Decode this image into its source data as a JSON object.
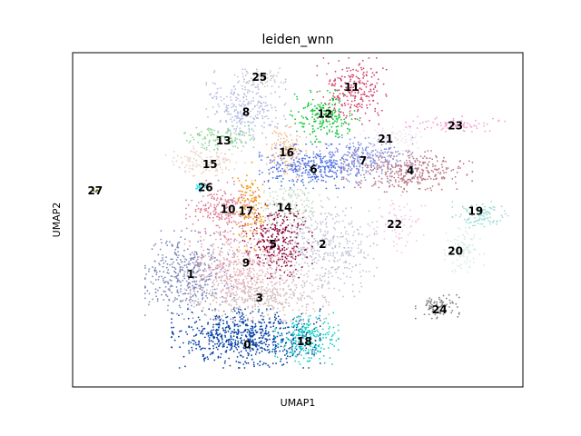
{
  "chart_data": {
    "type": "scatter",
    "title": "leiden_wnn",
    "xlabel": "UMAP1",
    "ylabel": "UMAP2",
    "xlim": [
      0,
      100
    ],
    "ylim": [
      0,
      100
    ],
    "grid": false,
    "ticks": false,
    "clusters": [
      {
        "label": "0",
        "color": "#023fa5",
        "x": 38.5,
        "y": 14.5,
        "sx": 7.5,
        "sy": 4.0,
        "n": 700
      },
      {
        "label": "1",
        "color": "#7d87b9",
        "x": 26.0,
        "y": 33.5,
        "sx": 4.5,
        "sy": 6.0,
        "n": 450
      },
      {
        "label": "2",
        "color": "#bec1d4",
        "x": 55.5,
        "y": 42.0,
        "sx": 5.5,
        "sy": 7.0,
        "n": 400
      },
      {
        "label": "3",
        "color": "#d6bcc0",
        "x": 41.5,
        "y": 27.5,
        "sx": 7.0,
        "sy": 3.5,
        "n": 450
      },
      {
        "label": "4",
        "color": "#bb7784",
        "x": 74.5,
        "y": 64.5,
        "sx": 6.5,
        "sy": 2.8,
        "n": 350
      },
      {
        "label": "5",
        "color": "#8e063b",
        "x": 45.5,
        "y": 43.5,
        "sx": 3.5,
        "sy": 5.0,
        "n": 320
      },
      {
        "label": "6",
        "color": "#4a6fe3",
        "x": 52.5,
        "y": 66.0,
        "sx": 5.0,
        "sy": 3.0,
        "n": 330
      },
      {
        "label": "7",
        "color": "#8595e1",
        "x": 64.5,
        "y": 68.0,
        "sx": 5.0,
        "sy": 3.0,
        "n": 260
      },
      {
        "label": "8",
        "color": "#b5bbe3",
        "x": 38.5,
        "y": 84.0,
        "sx": 4.0,
        "sy": 5.0,
        "n": 280
      },
      {
        "label": "9",
        "color": "#e6afb9",
        "x": 37.0,
        "y": 36.5,
        "sx": 5.5,
        "sy": 4.5,
        "n": 380
      },
      {
        "label": "10",
        "color": "#e07b91",
        "x": 34.0,
        "y": 53.0,
        "sx": 4.0,
        "sy": 4.0,
        "n": 240
      },
      {
        "label": "11",
        "color": "#d33f6a",
        "x": 62.0,
        "y": 88.5,
        "sx": 3.5,
        "sy": 4.5,
        "n": 240
      },
      {
        "label": "12",
        "color": "#11c638",
        "x": 56.0,
        "y": 81.0,
        "sx": 3.5,
        "sy": 3.5,
        "n": 200
      },
      {
        "label": "13",
        "color": "#8dd593",
        "x": 32.5,
        "y": 74.5,
        "sx": 3.5,
        "sy": 1.6,
        "n": 130
      },
      {
        "label": "14",
        "color": "#c6dec7",
        "x": 47.5,
        "y": 54.0,
        "sx": 3.5,
        "sy": 3.5,
        "n": 160
      },
      {
        "label": "15",
        "color": "#ead3c6",
        "x": 29.5,
        "y": 67.5,
        "sx": 4.0,
        "sy": 2.0,
        "n": 130
      },
      {
        "label": "16",
        "color": "#f0b98d",
        "x": 47.5,
        "y": 70.5,
        "sx": 2.0,
        "sy": 3.5,
        "n": 130
      },
      {
        "label": "17",
        "color": "#ef9708",
        "x": 39.5,
        "y": 54.0,
        "sx": 1.8,
        "sy": 6.0,
        "n": 120
      },
      {
        "label": "18",
        "color": "#0fcfc0",
        "x": 52.0,
        "y": 14.5,
        "sx": 3.2,
        "sy": 3.5,
        "n": 230
      },
      {
        "label": "19",
        "color": "#9cded6",
        "x": 90.5,
        "y": 51.5,
        "sx": 2.8,
        "sy": 1.8,
        "n": 110
      },
      {
        "label": "20",
        "color": "#d5eae7",
        "x": 87.0,
        "y": 41.0,
        "sx": 2.0,
        "sy": 3.0,
        "n": 90
      },
      {
        "label": "21",
        "color": "#f3e1eb",
        "x": 71.5,
        "y": 74.5,
        "sx": 3.5,
        "sy": 1.8,
        "n": 80
      },
      {
        "label": "22",
        "color": "#f6c4e1",
        "x": 72.5,
        "y": 49.0,
        "sx": 3.0,
        "sy": 4.0,
        "n": 80
      },
      {
        "label": "23",
        "color": "#f79cd4",
        "x": 85.0,
        "y": 78.5,
        "sx": 5.0,
        "sy": 1.2,
        "n": 80
      },
      {
        "label": "24",
        "color": "#7f7f7f",
        "x": 81.0,
        "y": 24.0,
        "sx": 2.2,
        "sy": 1.6,
        "n": 90
      },
      {
        "label": "25",
        "color": "#c7c7c7",
        "x": 41.5,
        "y": 92.0,
        "sx": 2.5,
        "sy": 1.5,
        "n": 60
      },
      {
        "label": "26",
        "color": "#1ce6ff",
        "x": 28.0,
        "y": 59.5,
        "sx": 0.7,
        "sy": 0.5,
        "n": 18
      },
      {
        "label": "27",
        "color": "#336600",
        "x": 5.0,
        "y": 58.5,
        "sx": 0.3,
        "sy": 0.3,
        "n": 5
      }
    ],
    "cluster_label_positions": [
      {
        "label": "0",
        "x": 38.8,
        "y": 12.5
      },
      {
        "label": "1",
        "x": 26.2,
        "y": 33.5
      },
      {
        "label": "2",
        "x": 55.5,
        "y": 42.5
      },
      {
        "label": "3",
        "x": 41.5,
        "y": 26.5
      },
      {
        "label": "4",
        "x": 75.0,
        "y": 64.5
      },
      {
        "label": "5",
        "x": 44.5,
        "y": 42.5
      },
      {
        "label": "6",
        "x": 53.5,
        "y": 65.0
      },
      {
        "label": "7",
        "x": 64.5,
        "y": 67.5
      },
      {
        "label": "8",
        "x": 38.5,
        "y": 82.0
      },
      {
        "label": "9",
        "x": 38.5,
        "y": 37.0
      },
      {
        "label": "10",
        "x": 34.5,
        "y": 53.0
      },
      {
        "label": "11",
        "x": 62.0,
        "y": 89.5
      },
      {
        "label": "12",
        "x": 56.0,
        "y": 81.5
      },
      {
        "label": "13",
        "x": 33.5,
        "y": 73.5
      },
      {
        "label": "14",
        "x": 47.0,
        "y": 53.5
      },
      {
        "label": "15",
        "x": 30.5,
        "y": 66.5
      },
      {
        "label": "16",
        "x": 47.5,
        "y": 70.0
      },
      {
        "label": "17",
        "x": 38.5,
        "y": 52.5
      },
      {
        "label": "18",
        "x": 51.5,
        "y": 13.5
      },
      {
        "label": "19",
        "x": 89.5,
        "y": 52.5
      },
      {
        "label": "20",
        "x": 85.0,
        "y": 40.5
      },
      {
        "label": "21",
        "x": 69.5,
        "y": 74.0
      },
      {
        "label": "22",
        "x": 71.5,
        "y": 48.5
      },
      {
        "label": "23",
        "x": 85.0,
        "y": 78.0
      },
      {
        "label": "24",
        "x": 81.5,
        "y": 23.0
      },
      {
        "label": "25",
        "x": 41.5,
        "y": 92.5
      },
      {
        "label": "26",
        "x": 29.5,
        "y": 59.5
      },
      {
        "label": "27",
        "x": 5.0,
        "y": 58.5
      }
    ]
  }
}
